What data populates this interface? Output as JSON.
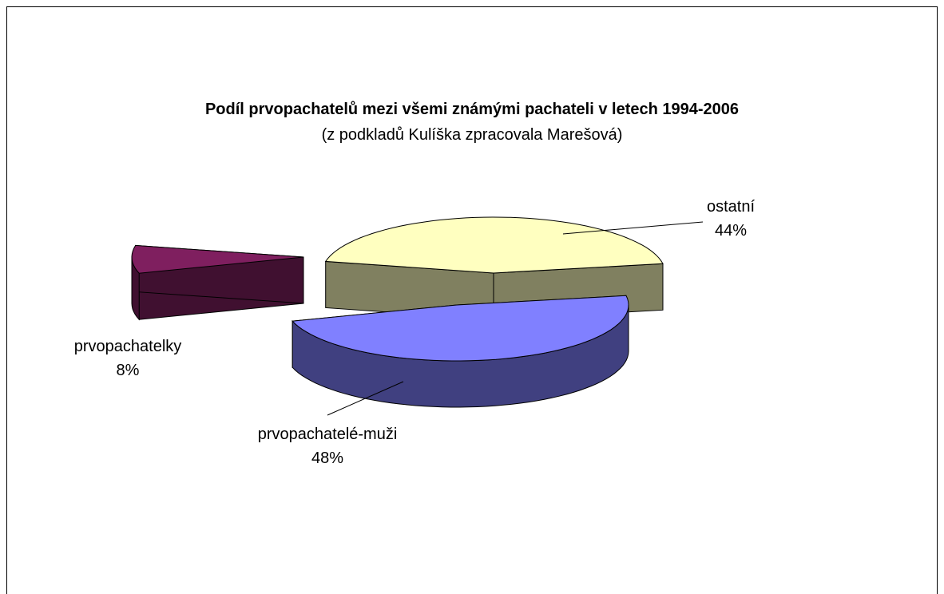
{
  "chart_data": {
    "type": "pie3d",
    "title": "Podíl prvopachatelů mezi všemi známými pachateli v letech 1994-2006",
    "subtitle": "(z podkladů  Kulíška zpracovala Marešová)",
    "categories": [
      "ostatní",
      "prvopachatelé-muži",
      "prvopachatelky"
    ],
    "values": [
      44,
      48,
      8
    ],
    "value_labels": [
      "44%",
      "48%",
      "8%"
    ],
    "colors": [
      "#ffffc0",
      "#8080ff",
      "#7f1f5f"
    ]
  }
}
